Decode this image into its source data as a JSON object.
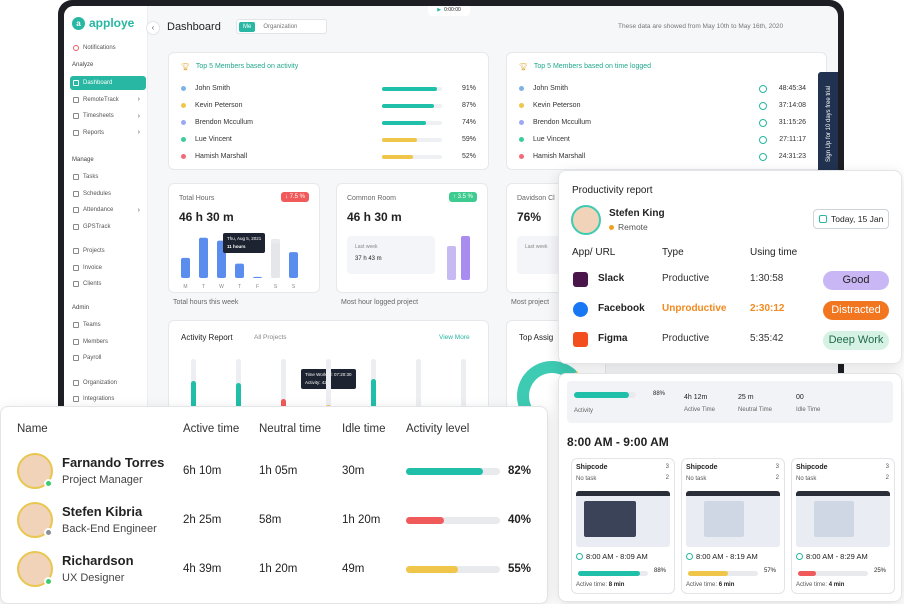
{
  "topbar": {
    "timer": "0:00:00",
    "page_title": "Dashboard",
    "toggle_me": "Me",
    "toggle_org": "Organization",
    "date_note": "These data are showed from May 10th to May 16th, 2020"
  },
  "sidebar": {
    "brand": "apploye",
    "notifications": "Notifications",
    "section_analyze": "Analyze",
    "analyze_items": [
      "Dashboard",
      "RemoteTrack",
      "Timesheets",
      "Reports"
    ],
    "section_manage": "Manage",
    "manage_items": [
      "Tasks",
      "Schedules",
      "Attendance",
      "GPSTrack",
      "Projects",
      "Invoice",
      "Clients"
    ],
    "section_admin": "Admin",
    "admin_items": [
      "Teams",
      "Members",
      "Payroll",
      "Organization",
      "Integrations"
    ]
  },
  "top_activity": {
    "title": "Top 5 Members based on activity",
    "rows": [
      {
        "name": "John Smith",
        "pct": 91,
        "label": "91%",
        "color": "#20bfa9",
        "dot": "#7fb3e8"
      },
      {
        "name": "Kevin Peterson",
        "pct": 87,
        "label": "87%",
        "color": "#20bfa9",
        "dot": "#f0c64a"
      },
      {
        "name": "Brendon Mccullum",
        "pct": 74,
        "label": "74%",
        "color": "#20bfa9",
        "dot": "#9ba8f5"
      },
      {
        "name": "Lue Vincent",
        "pct": 59,
        "label": "59%",
        "color": "#f0c64a",
        "dot": "#3ecb9d"
      },
      {
        "name": "Hamish Marshall",
        "pct": 52,
        "label": "52%",
        "color": "#f0c64a",
        "dot": "#f26b7a"
      }
    ]
  },
  "top_time": {
    "title": "Top 5 Members based on time logged",
    "rows": [
      {
        "name": "John Smith",
        "time": "48:45:34",
        "dot": "#7fb3e8"
      },
      {
        "name": "Kevin Peterson",
        "time": "37:14:08",
        "dot": "#f0c64a"
      },
      {
        "name": "Brendon Mccullum",
        "time": "31:15:26",
        "dot": "#9ba8f5"
      },
      {
        "name": "Lue Vincent",
        "time": "27:11:17",
        "dot": "#3ecb9d"
      },
      {
        "name": "Hamish Marshall",
        "time": "24:31:23",
        "dot": "#f26b7a"
      }
    ]
  },
  "signup_banner": "Sign Up for 10 days free trial",
  "total_hours": {
    "label": "Total Hours",
    "value": "46 h 30 m",
    "badge": "7.5 %",
    "caption": "Total hours this week",
    "tooltip_date": "Thu, Aug 5, 2021",
    "tooltip_value": "11 hours"
  },
  "common_room": {
    "label": "Common Room",
    "value": "46 h 30 m",
    "badge": "3.5 %",
    "last_week_label": "Last week",
    "last_week_value": "37 h 43 m",
    "caption": "Most hour logged project"
  },
  "davidson": {
    "label": "Davidson Cl",
    "value": "76%",
    "last_week_label": "Last week",
    "last_week_value": "",
    "caption": "Most project"
  },
  "chart_data": {
    "type": "bar",
    "categories": [
      "M",
      "T",
      "W",
      "T",
      "F",
      "S",
      "S"
    ],
    "values": [
      3.5,
      7,
      6.5,
      2.5,
      0.2,
      6,
      4.5
    ],
    "ylim": [
      0,
      8
    ]
  },
  "activity_report": {
    "title": "Activity Report",
    "filter": "All Projects",
    "view_more": "View More",
    "tooltip_line1": "Time Worked: 07:20:30",
    "tooltip_line2": "Activity: 42%"
  },
  "top_assignee": {
    "title": "Top Assig"
  },
  "productivity": {
    "title": "Productivity report",
    "user_name": "Stefen King",
    "user_status": "Remote",
    "date_button": "Today, 15 Jan",
    "col_app": "App/ URL",
    "col_type": "Type",
    "col_time": "Using time",
    "rows": [
      {
        "app": "Slack",
        "type": "Productive",
        "time": "1:30:58",
        "badge": "Good",
        "type_color": "#333",
        "badge_bg": "#c9b6f5",
        "badge_fg": "#222"
      },
      {
        "app": "Facebook",
        "type": "Unproductive",
        "time": "2:30:12",
        "badge": "Distracted",
        "type_color": "#f28a1e",
        "badge_bg": "#f2761f",
        "badge_fg": "#fff"
      },
      {
        "app": "Figma",
        "type": "Productive",
        "time": "5:35:42",
        "badge": "Deep Work",
        "type_color": "#333",
        "badge_bg": "#d6f2e4",
        "badge_fg": "#1f6a4d"
      }
    ]
  },
  "members_table": {
    "headers": [
      "Name",
      "Active time",
      "Neutral time",
      "Idle time",
      "Activity level"
    ],
    "rows": [
      {
        "name": "Farnando Torres",
        "role": "Project Manager",
        "active": "6h 10m",
        "neutral": "1h 05m",
        "idle": "30m",
        "level": 82,
        "level_label": "82%",
        "color": "#20bfa9",
        "status": "#3ecb6f"
      },
      {
        "name": "Stefen Kibria",
        "role": "Back-End Engineer",
        "active": "2h 25m",
        "neutral": "58m",
        "idle": "1h 20m",
        "level": 40,
        "level_label": "40%",
        "color": "#f05a5a",
        "status": "#8a8f98"
      },
      {
        "name": "Richardson",
        "role": "UX Designer",
        "active": "4h 39m",
        "neutral": "1h 20m",
        "idle": "49m",
        "level": 55,
        "level_label": "55%",
        "color": "#f0c64a",
        "status": "#3ecb6f"
      }
    ]
  },
  "shots": {
    "summary": {
      "activity_pct": 88,
      "activity_label": "88%",
      "activity_caption": "Activity",
      "active": "4h 12m",
      "active_caption": "Active Time",
      "neutral": "25 m",
      "neutral_caption": "Neutral Time",
      "idle": "00",
      "idle_caption": "Idle Time"
    },
    "range": "8:00 AM - 9:00 AM",
    "cards": [
      {
        "project": "Shipcode",
        "task": "No task",
        "count_a": "3",
        "count_b": "2",
        "range": "8:00 AM - 8:09 AM",
        "pct": 88,
        "pct_label": "88%",
        "color": "#20bfa9",
        "active_label": "Active time:",
        "active_value": "8 min"
      },
      {
        "project": "Shipcode",
        "task": "No task",
        "count_a": "3",
        "count_b": "2",
        "range": "8:00 AM - 8:19 AM",
        "pct": 57,
        "pct_label": "57%",
        "color": "#f0c64a",
        "active_label": "Active time:",
        "active_value": "6 min"
      },
      {
        "project": "Shipcode",
        "task": "No task",
        "count_a": "3",
        "count_b": "2",
        "range": "8:00 AM - 8:29 AM",
        "pct": 25,
        "pct_label": "25%",
        "color": "#f05a5a",
        "active_label": "Active time:",
        "active_value": "4 min"
      }
    ]
  }
}
